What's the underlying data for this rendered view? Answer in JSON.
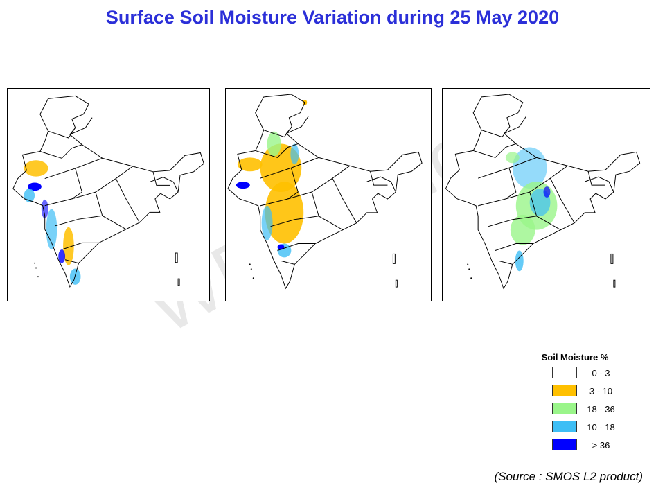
{
  "title": "Surface Soil Moisture Variation during 25 May 2020",
  "watermark": "WPS Office",
  "legend": {
    "title": "Soil Moisture %",
    "items": [
      {
        "label": "0 - 3",
        "color": "#ffffff"
      },
      {
        "label": "3 - 10",
        "color": "#ffc000"
      },
      {
        "label": "18 - 36",
        "color": "#9af58a"
      },
      {
        "label": "10 - 18",
        "color": "#3ebef5"
      },
      {
        "label": "> 36",
        "color": "#0000ff"
      }
    ]
  },
  "source": "(Source : SMOS L2 product)",
  "colors": {
    "title": "#2b2fd8",
    "boundary": "#000000"
  }
}
